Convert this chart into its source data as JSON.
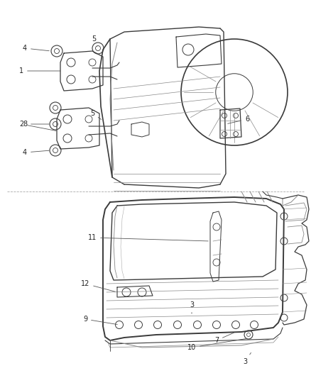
{
  "background_color": "#ffffff",
  "fig_width": 4.38,
  "fig_height": 5.33,
  "dpi": 100,
  "line_color": "#3a3a3a",
  "light_color": "#888888",
  "lighter_color": "#aaaaaa"
}
